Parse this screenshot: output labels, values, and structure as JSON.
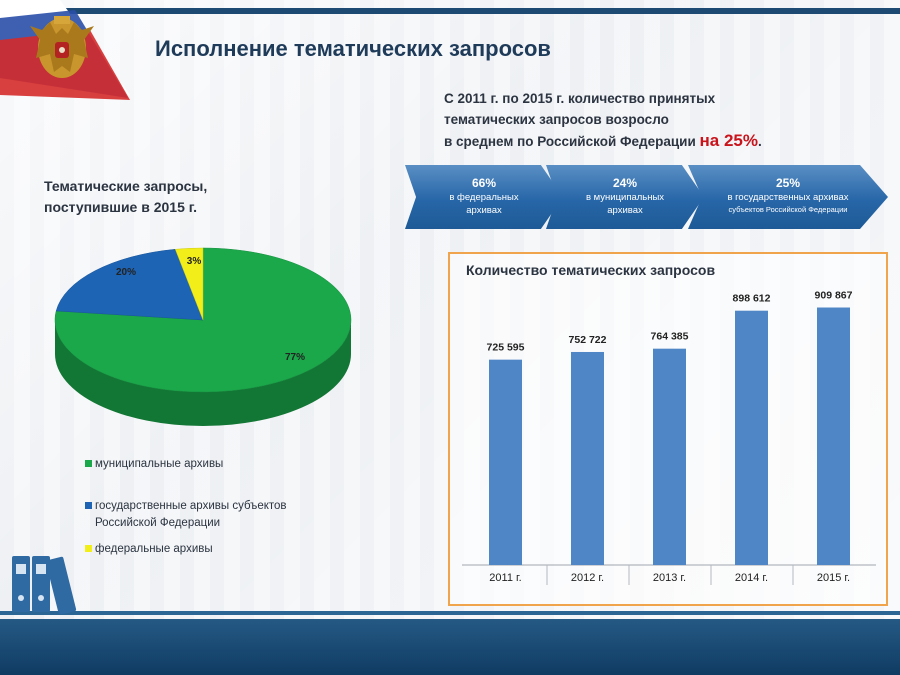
{
  "title": "Исполнение тематических запросов",
  "summary": {
    "line1": "С 2011 г. по 2015 г. количество принятых",
    "line2": "тематических запросов возросло",
    "line3": "в среднем по Российской Федерации ",
    "highlight": "на 25%",
    "end": "."
  },
  "arrows": [
    {
      "pct": "66%",
      "line1": "в федеральных",
      "line2": "архивах"
    },
    {
      "pct": "24%",
      "line1": "в муниципальных",
      "line2": "архивах"
    },
    {
      "pct": "25%",
      "line1": "в государственных архивах",
      "line2": "субъектов Российской Федерации"
    }
  ],
  "colors": {
    "municipal": "#1aa84a",
    "regional": "#1e64b4",
    "federal": "#f2ee1a",
    "bar": "#4f86c6",
    "accent": "#c9141c"
  },
  "chart_data": [
    {
      "type": "pie",
      "title": "Тематические запросы, поступившие в 2015 г.",
      "slices": [
        {
          "label": "муниципальные архивы",
          "value": 77,
          "value_label": "77%"
        },
        {
          "label": "государственные архивы субъектов Российской Федерации",
          "value": 20,
          "value_label": "20%"
        },
        {
          "label": "федеральные архивы",
          "value": 3,
          "value_label": "3%"
        }
      ],
      "legend_position": "bottom"
    },
    {
      "type": "bar",
      "title": "Количество тематических запросов",
      "categories": [
        "2011 г.",
        "2012 г.",
        "2013 г.",
        "2014 г.",
        "2015 г."
      ],
      "values": [
        725595,
        752722,
        764385,
        898612,
        909867
      ],
      "value_labels": [
        "725 595",
        "752 722",
        "764 385",
        "898 612",
        "909 867"
      ],
      "ylim": [
        0,
        1000000
      ],
      "grid": false
    }
  ],
  "legend_labels": {
    "municipal": "муниципальные архивы",
    "regional_line1": "государственные архивы субъектов",
    "regional_line2": "Российской Федерации",
    "federal": "федеральные архивы"
  },
  "pie_title": {
    "line1": "Тематические запросы,",
    "line2": "поступившие в 2015 г."
  }
}
